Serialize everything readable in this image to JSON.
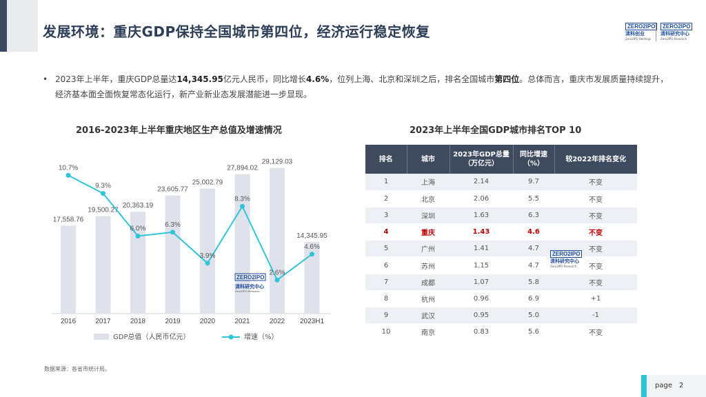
{
  "header": {
    "title": "发展环境：重庆GDP保持全国城市第四位，经济运行稳定恢复",
    "logo_left": {
      "brand": "ZERO2IPO",
      "cn": "清科创业",
      "en": "Zero2IPO Holdings"
    },
    "logo_right": {
      "brand": "ZERO2IPO",
      "cn": "清科研究中心",
      "en": "Zero2IPO Research"
    }
  },
  "bullet": {
    "marker": "•",
    "t1": "2023年上半年，重庆GDP总量达",
    "b1": "14,345.95",
    "t2": "亿元人民币，同比增长",
    "b2": "4.6%",
    "t3": "，位列上海、北京和深圳之后，排名全国城市",
    "b3": "第四位",
    "t4": "。总体而言，重庆市发展质量持续提升，经济基本面全面恢复常态化运行，新产业新业态发展潜能进一步显现。"
  },
  "chart_data": [
    {
      "type": "bar+line",
      "title": "2016-2023年上半年重庆地区生产总值及增速情况",
      "categories": [
        "2016",
        "2017",
        "2018",
        "2019",
        "2020",
        "2021",
        "2022",
        "2023H1"
      ],
      "series": [
        {
          "name": "GDP总值（人民币亿元）",
          "type": "bar",
          "values": [
            17558.76,
            19500.27,
            20363.19,
            23605.77,
            25002.79,
            27894.02,
            29129.03,
            14345.95
          ],
          "labels": [
            "17,558.76",
            "19,500.27",
            "20,363.19",
            "23,605.77",
            "25,002.79",
            "27,894.02",
            "29,129.03",
            "14,345.95"
          ],
          "color": "#dfe2ea"
        },
        {
          "name": "增速（%）",
          "type": "line",
          "values": [
            10.7,
            9.3,
            6.0,
            6.3,
            3.9,
            8.3,
            2.6,
            4.6
          ],
          "labels": [
            "10.7%",
            "9.3%",
            "6.0%",
            "6.3%",
            "3.9%",
            "8.3%",
            "2.6%",
            "4.6%"
          ],
          "color": "#2ec5d8"
        }
      ],
      "bar_ylim": [
        0,
        31000
      ],
      "line_ylim": [
        0,
        12
      ],
      "legend": "bottom"
    },
    {
      "type": "table",
      "title": "2023年上半年全国GDP城市排名TOP 10",
      "columns": [
        "排名",
        "城市",
        "2023年GDP总量（万亿元）",
        "同比增速（%）",
        "较2022年排名变化"
      ],
      "columns_display": [
        [
          "排名"
        ],
        [
          "城市"
        ],
        [
          "2023年GDP总量",
          "（万亿元）"
        ],
        [
          "同比增速",
          "（%）"
        ],
        [
          "较2022年排名变化"
        ]
      ],
      "rows": [
        [
          "1",
          "上海",
          "2.14",
          "9.7",
          "不变"
        ],
        [
          "2",
          "北京",
          "2.06",
          "5.5",
          "不变"
        ],
        [
          "3",
          "深圳",
          "1.63",
          "6.3",
          "不变"
        ],
        [
          "4",
          "重庆",
          "1.43",
          "4.6",
          "不变"
        ],
        [
          "5",
          "广州",
          "1.41",
          "4.7",
          "不变"
        ],
        [
          "6",
          "苏州",
          "1.15",
          "4.7",
          "不变"
        ],
        [
          "7",
          "成都",
          "1.07",
          "5.8",
          "不变"
        ],
        [
          "8",
          "杭州",
          "0.96",
          "6.9",
          "+1"
        ],
        [
          "9",
          "武汉",
          "0.95",
          "5.0",
          "-1"
        ],
        [
          "10",
          "南京",
          "0.83",
          "5.6",
          "不变"
        ]
      ],
      "highlight_row": 3
    }
  ],
  "watermark": {
    "brand": "ZERO2IPO",
    "cn": "清科研究中心",
    "en": "Zero2IPO Research"
  },
  "source": "数据来源：各省市统计局。",
  "page": {
    "label": "page",
    "number": "2"
  },
  "colors": {
    "title": "#2d3e57",
    "header_bg": "#3e4b5f",
    "highlight": "#c00000",
    "accent": "#2ec5d8",
    "bar": "#dfe2ea"
  }
}
